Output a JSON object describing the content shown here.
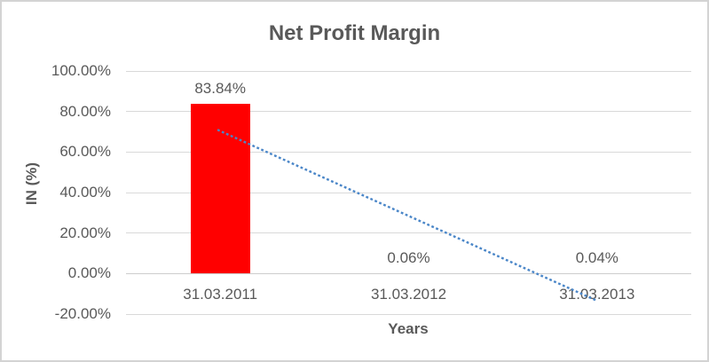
{
  "window": {
    "background": "#ffffff",
    "border_color": "#d3d3d3"
  },
  "chart_data": {
    "type": "bar",
    "title": "Net Profit Margin",
    "xlabel": "Years",
    "ylabel": "IN (%)",
    "categories": [
      "31.03.2011",
      "31.03.2012",
      "31.03.2013"
    ],
    "values": [
      83.84,
      0.06,
      0.04
    ],
    "data_labels": [
      "83.84%",
      "0.06%",
      "0.04%"
    ],
    "y_ticks": [
      {
        "label": "100.00%",
        "value": 100
      },
      {
        "label": "80.00%",
        "value": 80
      },
      {
        "label": "60.00%",
        "value": 60
      },
      {
        "label": "40.00%",
        "value": 40
      },
      {
        "label": "20.00%",
        "value": 20
      },
      {
        "label": "0.00%",
        "value": 0
      },
      {
        "label": "-20.00%",
        "value": -20
      }
    ],
    "ylim": [
      -20,
      100
    ],
    "grid": true,
    "legend": "none",
    "bar_color": "#ff0000",
    "text_color": "#595959",
    "gridline_color": "#d9d9d9",
    "axis_line_color": "#cdcdcd",
    "trendline": {
      "type": "linear",
      "style": "dotted",
      "color": "#4a86c8",
      "start_value": 69.88,
      "end_value": -13.92
    }
  }
}
